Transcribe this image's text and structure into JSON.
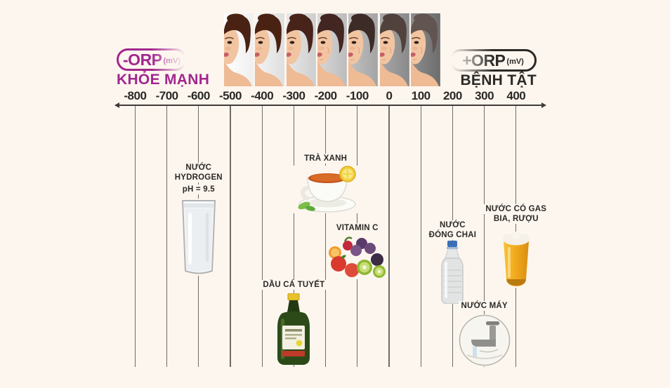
{
  "background_color": "#fdf6ef",
  "accent_color": "#a1278e",
  "dark_color": "#2b2926",
  "header": {
    "left_pill_label": "-ORP",
    "left_pill_unit": "(mV)",
    "left_title": "KHỎE MẠNH",
    "right_pill_label": "+ORP",
    "right_pill_unit": "(mV)",
    "right_title": "BỆNH TẬT"
  },
  "faces": {
    "panels": [
      {
        "bg_from": "#ffffff",
        "bg_to": "#efefef",
        "hair": "#4a2213"
      },
      {
        "bg_from": "#f5f5f5",
        "bg_to": "#dedede",
        "hair": "#4a2213"
      },
      {
        "bg_from": "#e8e8e8",
        "bg_to": "#cecece",
        "hair": "#47231a"
      },
      {
        "bg_from": "#d8d8d8",
        "bg_to": "#bcbcbc",
        "hair": "#432522"
      },
      {
        "bg_from": "#c2c2c2",
        "bg_to": "#a4a4a4",
        "hair": "#3d2b27"
      },
      {
        "bg_from": "#a7a7a7",
        "bg_to": "#8a8a8a",
        "hair": "#51423d"
      },
      {
        "bg_from": "#8d8d8d",
        "bg_to": "#6d6d6d",
        "hair": "#625450"
      }
    ]
  },
  "chart_data": {
    "type": "scale",
    "title": "ORP (mV) scale: negative ORP = healthy, positive ORP = disease",
    "axis": {
      "min": -800,
      "max": 400,
      "step": 100,
      "tick_labels": [
        "-800",
        "-700",
        "-600",
        "-500",
        "-400",
        "-300",
        "-200",
        "-100",
        "0",
        "100",
        "200",
        "300",
        "400"
      ]
    },
    "items": [
      {
        "id": "hydrogen-water",
        "value": -600,
        "label_lines": [
          "NƯỚC",
          "HYDROGEN"
        ],
        "sub_label": "pH = 9.5",
        "icon": "water-glass"
      },
      {
        "id": "cod-liver-oil",
        "value": -300,
        "label_lines": [
          "DẦU CÁ TUYẾT"
        ],
        "sub_label": "",
        "icon": "oil-bottle"
      },
      {
        "id": "green-tea",
        "value": -200,
        "label_lines": [
          "TRÀ XANH"
        ],
        "sub_label": "",
        "icon": "tea-cup"
      },
      {
        "id": "vitamin-c",
        "value": -100,
        "label_lines": [
          "VITAMIN C"
        ],
        "sub_label": "",
        "icon": "fruits"
      },
      {
        "id": "bottled-water",
        "value": 200,
        "label_lines": [
          "NƯỚC",
          "ĐÓNG CHAI"
        ],
        "sub_label": "",
        "icon": "plastic-bottle"
      },
      {
        "id": "tap-water",
        "value": 300,
        "label_lines": [
          "NƯỚC MÁY"
        ],
        "sub_label": "",
        "icon": "faucet"
      },
      {
        "id": "carbonated-drinks-beer-alcohol",
        "value": 400,
        "label_lines": [
          "NƯỚC CÓ GAS",
          "BIA, RƯỢU"
        ],
        "sub_label": "",
        "icon": "beer-glass"
      }
    ]
  }
}
